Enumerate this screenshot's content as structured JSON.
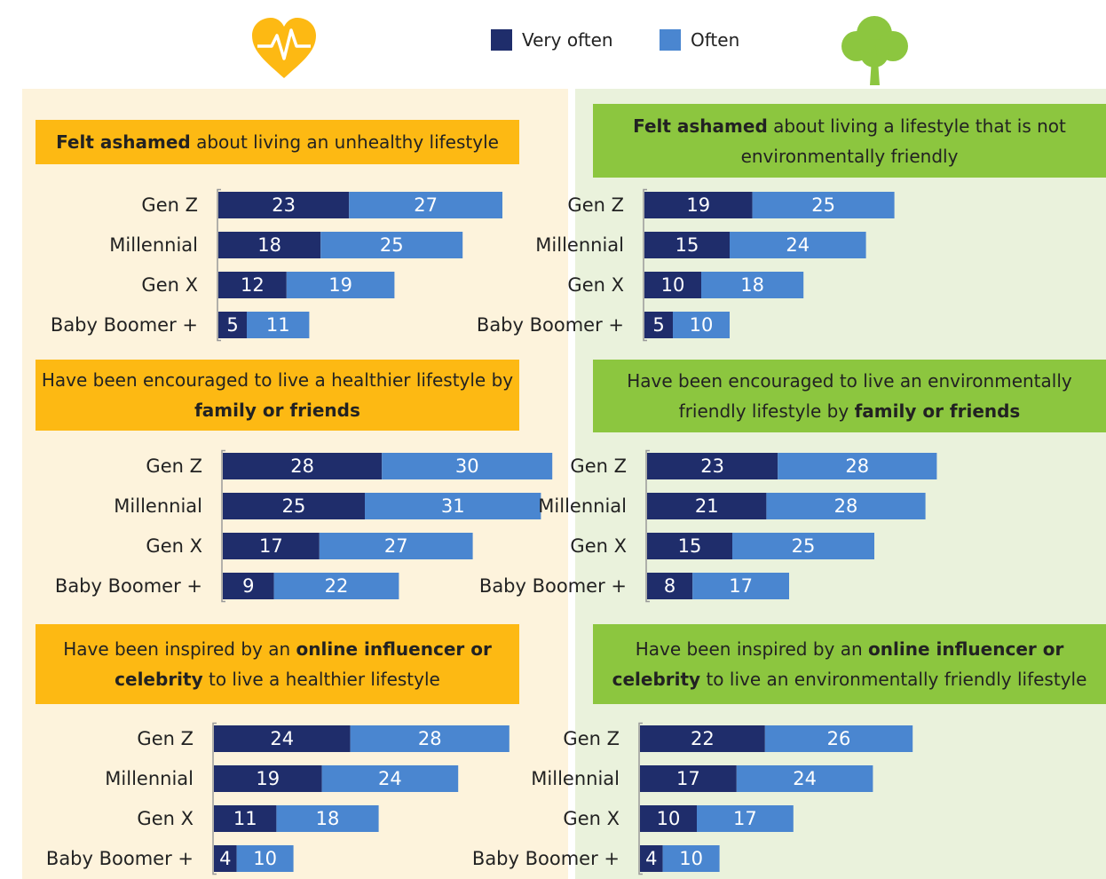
{
  "legend": [
    {
      "name": "Very often",
      "color": "#1f2d6b"
    },
    {
      "name": "Often",
      "color": "#4a86d0"
    }
  ],
  "chart_data": [
    {
      "type": "bar",
      "orientation": "horizontal",
      "stacked": true,
      "title_parts": [
        {
          "text": "Felt ashamed",
          "bold": true
        },
        {
          "text": " about living an unhealthy lifestyle",
          "bold": false
        }
      ],
      "categories": [
        "Gen Z",
        "Millennial",
        "Gen X",
        "Baby Boomer +"
      ],
      "series": [
        {
          "values": [
            23,
            18,
            12,
            5
          ]
        },
        {
          "values": [
            27,
            25,
            19,
            11
          ]
        }
      ]
    },
    {
      "type": "bar",
      "orientation": "horizontal",
      "stacked": true,
      "title_parts": [
        {
          "text": "Felt ashamed",
          "bold": true
        },
        {
          "text": " about living a lifestyle that is not environmentally friendly",
          "bold": false
        }
      ],
      "categories": [
        "Gen Z",
        "Millennial",
        "Gen X",
        "Baby Boomer +"
      ],
      "series": [
        {
          "values": [
            19,
            15,
            10,
            5
          ]
        },
        {
          "values": [
            25,
            24,
            18,
            10
          ]
        }
      ]
    },
    {
      "type": "bar",
      "orientation": "horizontal",
      "stacked": true,
      "title_parts": [
        {
          "text": "Have been encouraged to live a healthier lifestyle by ",
          "bold": false
        },
        {
          "text": "family or friends",
          "bold": true
        }
      ],
      "categories": [
        "Gen Z",
        "Millennial",
        "Gen X",
        "Baby Boomer +"
      ],
      "series": [
        {
          "values": [
            28,
            25,
            17,
            9
          ]
        },
        {
          "values": [
            30,
            31,
            27,
            22
          ]
        }
      ]
    },
    {
      "type": "bar",
      "orientation": "horizontal",
      "stacked": true,
      "title_parts": [
        {
          "text": "Have been encouraged to live an environmentally friendly lifestyle by ",
          "bold": false
        },
        {
          "text": "family or friends",
          "bold": true
        }
      ],
      "categories": [
        "Gen Z",
        "Millennial",
        "Gen X",
        "Baby Boomer +"
      ],
      "series": [
        {
          "values": [
            23,
            21,
            15,
            8
          ]
        },
        {
          "values": [
            28,
            28,
            25,
            17
          ]
        }
      ]
    },
    {
      "type": "bar",
      "orientation": "horizontal",
      "stacked": true,
      "title_parts": [
        {
          "text": "Have been inspired by an ",
          "bold": false
        },
        {
          "text": "online influencer or celebrity",
          "bold": true
        },
        {
          "text": " to live a healthier lifestyle",
          "bold": false
        }
      ],
      "categories": [
        "Gen Z",
        "Millennial",
        "Gen X",
        "Baby Boomer +"
      ],
      "series": [
        {
          "values": [
            24,
            19,
            11,
            4
          ]
        },
        {
          "values": [
            28,
            24,
            18,
            10
          ]
        }
      ]
    },
    {
      "type": "bar",
      "orientation": "horizontal",
      "stacked": true,
      "title_parts": [
        {
          "text": "Have been inspired by an ",
          "bold": false
        },
        {
          "text": "online influencer or celebrity",
          "bold": true
        },
        {
          "text": " to live an environmentally friendly lifestyle",
          "bold": false
        }
      ],
      "categories": [
        "Gen Z",
        "Millennial",
        "Gen X",
        "Baby Boomer +"
      ],
      "series": [
        {
          "values": [
            22,
            17,
            10,
            4
          ]
        },
        {
          "values": [
            26,
            24,
            17,
            10
          ]
        }
      ]
    }
  ]
}
